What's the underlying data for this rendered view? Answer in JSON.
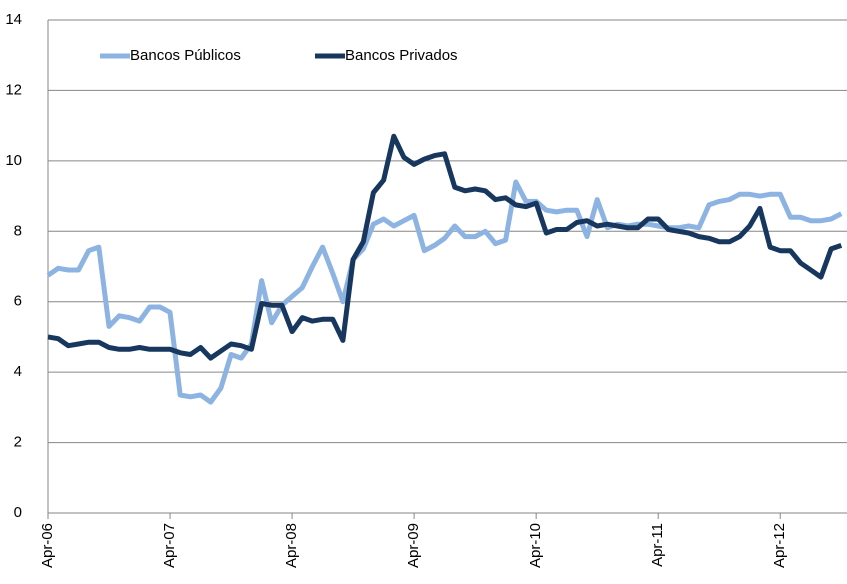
{
  "chart_data": {
    "type": "line",
    "categories": [
      "Apr-06",
      null,
      null,
      null,
      null,
      null,
      null,
      null,
      null,
      null,
      null,
      null,
      "Apr-07",
      null,
      null,
      null,
      null,
      null,
      null,
      null,
      null,
      null,
      null,
      null,
      "Apr-08",
      null,
      null,
      null,
      null,
      null,
      null,
      null,
      null,
      null,
      null,
      null,
      "Apr-09",
      null,
      null,
      null,
      null,
      null,
      null,
      null,
      null,
      null,
      null,
      null,
      "Apr-10",
      null,
      null,
      null,
      null,
      null,
      null,
      null,
      null,
      null,
      null,
      null,
      "Apr-11",
      null,
      null,
      null,
      null,
      null,
      null,
      null,
      null,
      null,
      null,
      null,
      "Apr-12",
      null,
      null,
      null,
      null,
      null,
      null
    ],
    "series": [
      {
        "name": "Bancos Públicos",
        "color": "#8db3e2",
        "values": [
          6.75,
          6.95,
          6.9,
          6.9,
          7.45,
          7.55,
          5.3,
          5.6,
          5.55,
          5.45,
          5.85,
          5.85,
          5.7,
          3.35,
          3.3,
          3.35,
          3.15,
          3.55,
          4.5,
          4.4,
          4.8,
          6.6,
          5.4,
          5.9,
          6.15,
          6.4,
          7.0,
          7.55,
          6.8,
          6.0,
          7.2,
          7.5,
          8.2,
          8.35,
          8.15,
          8.3,
          8.45,
          7.45,
          7.6,
          7.8,
          8.15,
          7.85,
          7.85,
          8.0,
          7.65,
          7.75,
          9.4,
          8.85,
          8.85,
          8.6,
          8.55,
          8.6,
          8.6,
          7.85,
          8.9,
          8.1,
          8.2,
          8.15,
          8.2,
          8.2,
          8.15,
          8.1,
          8.1,
          8.15,
          8.1,
          8.75,
          8.85,
          8.9,
          9.05,
          9.05,
          9.0,
          9.05,
          9.05,
          8.4,
          8.4,
          8.3,
          8.3,
          8.35,
          8.5
        ]
      },
      {
        "name": "Bancos Privados",
        "color": "#17375e",
        "values": [
          5.0,
          4.95,
          4.75,
          4.8,
          4.85,
          4.85,
          4.7,
          4.65,
          4.65,
          4.7,
          4.65,
          4.65,
          4.65,
          4.55,
          4.5,
          4.7,
          4.4,
          4.6,
          4.8,
          4.75,
          4.65,
          5.95,
          5.9,
          5.9,
          5.15,
          5.55,
          5.45,
          5.5,
          5.5,
          4.9,
          7.2,
          7.7,
          9.1,
          9.45,
          10.7,
          10.1,
          9.9,
          10.05,
          10.15,
          10.2,
          9.25,
          9.15,
          9.2,
          9.15,
          8.9,
          8.95,
          8.75,
          8.7,
          8.8,
          7.95,
          8.05,
          8.05,
          8.25,
          8.3,
          8.15,
          8.2,
          8.15,
          8.1,
          8.1,
          8.35,
          8.35,
          8.05,
          8.0,
          7.95,
          7.85,
          7.8,
          7.7,
          7.7,
          7.85,
          8.15,
          8.65,
          7.55,
          7.45,
          7.45,
          7.1,
          6.9,
          6.7,
          7.5,
          7.6
        ]
      }
    ],
    "ylim": [
      0,
      14
    ],
    "yticks": [
      0,
      2,
      4,
      6,
      8,
      10,
      12,
      14
    ],
    "grid": true,
    "legend": "top-left"
  }
}
